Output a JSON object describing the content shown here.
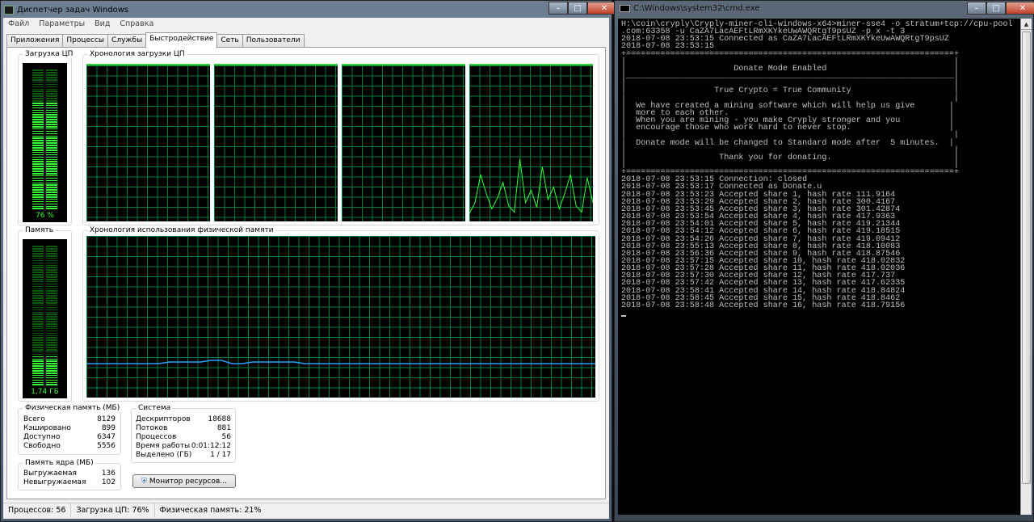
{
  "taskmgr": {
    "title": "Диспетчер задач Windows",
    "menu": [
      "Файл",
      "Параметры",
      "Вид",
      "Справка"
    ],
    "tabs": [
      "Приложения",
      "Процессы",
      "Службы",
      "Быстродействие",
      "Сеть",
      "Пользователи"
    ],
    "active_tab": "Быстродействие",
    "cpu_usage_label": "Загрузка ЦП",
    "cpu_usage_value": "76 %",
    "cpu_usage_percent": 76,
    "cpu_history_label": "Хронология загрузки ЦП",
    "cpu_history_core4": [
      5,
      12,
      30,
      18,
      8,
      15,
      25,
      10,
      6,
      40,
      12,
      20,
      9,
      35,
      14,
      22,
      8,
      18,
      30,
      10,
      6,
      28,
      12
    ],
    "memory_label": "Память",
    "memory_value": "1,74 ГБ",
    "memory_percent": 21,
    "memory_history_label": "Хронология использования физической памяти",
    "memory_history": [
      21,
      21,
      21,
      21,
      21,
      21,
      21,
      21,
      22,
      22,
      22,
      22,
      23,
      23,
      21,
      21,
      22,
      22,
      22,
      22,
      22,
      21,
      21,
      21,
      21,
      21,
      21,
      21,
      21,
      21,
      21,
      21,
      21,
      21,
      21,
      21,
      21,
      21,
      21,
      21,
      21,
      21,
      21,
      21,
      21,
      21,
      21,
      21,
      21,
      21
    ],
    "physical": {
      "label": "Физическая память (МБ)",
      "rows": [
        [
          "Всего",
          "8129"
        ],
        [
          "Кэшировано",
          "899"
        ],
        [
          "Доступно",
          "6347"
        ],
        [
          "Свободно",
          "5556"
        ]
      ]
    },
    "kernel": {
      "label": "Память ядра (МБ)",
      "rows": [
        [
          "Выгружаемая",
          "136"
        ],
        [
          "Невыгружаемая",
          "102"
        ]
      ]
    },
    "system": {
      "label": "Система",
      "rows": [
        [
          "Дескрипторов",
          "18688"
        ],
        [
          "Потоков",
          "881"
        ],
        [
          "Процессов",
          "56"
        ],
        [
          "Время работы",
          "0:01:12:12"
        ],
        [
          "Выделено (ГБ)",
          "1 / 17"
        ]
      ]
    },
    "resource_monitor_button": "Монитор ресурсов...",
    "status": {
      "processes": "Процессов: 56",
      "cpu": "Загрузка ЦП: 76%",
      "memory": "Физическая память: 21%"
    }
  },
  "cmd": {
    "title": "C:\\Windows\\system32\\cmd.exe",
    "lines": [
      "H:\\coin\\cryply\\Cryply-miner-cli-windows-x64>miner-sse4 -o stratum+tcp://cpu-pool",
      ".com:63358 -u CaZA7LacAEFtLRmXKYkeUwAWQRtgT9psUZ -p x -t 3",
      "2018-07-08 23:53:15 Connected as CaZA7LacAEFtLRmXKYkeUwAWQRtgT9psUZ",
      "2018-07-08 23:53:15",
      "+===================================================================+",
      "|                                                                   |",
      "|                      Donate Mode Enabled                          |",
      "|___________________________________________________________________|",
      "|                                                                   |",
      "|                  True Crypto = True Community                     |",
      "|                                                                   |",
      "|  We have created a mining software which will help us give       |",
      "|  more to each other.                                             |",
      "|  When you are mining - you make Cryply stronger and you          |",
      "|  encourage those who work hard to never stop.                    |",
      "|                                                                   |",
      "|  Donate mode will be changed to Standard mode after  5 minutes.  |",
      "|                                                                   |",
      "|                   Thank you for donating.                         |",
      "|                                                                   |",
      "+===================================================================+",
      "2018-07-08 23:53:15 Connection: closed",
      "2018-07-08 23:53:17 Connected as Donate.u",
      "2018-07-08 23:53:23 Accepted share 1, hash rate 111.9164",
      "2018-07-08 23:53:29 Accepted share 2, hash rate 300.4167",
      "2018-07-08 23:53:45 Accepted share 3, hash rate 301.42874",
      "2018-07-08 23:53:54 Accepted share 4, hash rate 417.9363",
      "2018-07-08 23:54:01 Accepted share 5, hash rate 419.21344",
      "2018-07-08 23:54:12 Accepted share 6, hash rate 419.18515",
      "2018-07-08 23:54:26 Accepted share 7, hash rate 419.09412",
      "2018-07-08 23:55:13 Accepted share 8, hash rate 418.10083",
      "2018-07-08 23:56:36 Accepted share 9, hash rate 418.87546",
      "2018-07-08 23:57:15 Accepted share 10, hash rate 418.02832",
      "2018-07-08 23:57:28 Accepted share 11, hash rate 418.02036",
      "2018-07-08 23:57:30 Accepted share 12, hash rate 417.737",
      "2018-07-08 23:57:42 Accepted share 13, hash rate 417.62335",
      "2018-07-08 23:58:41 Accepted share 14, hash rate 418.84824",
      "2018-07-08 23:58:45 Accepted share 15, hash rate 418.8462",
      "2018-07-08 23:58:48 Accepted share 16, hash rate 418.79156"
    ]
  }
}
